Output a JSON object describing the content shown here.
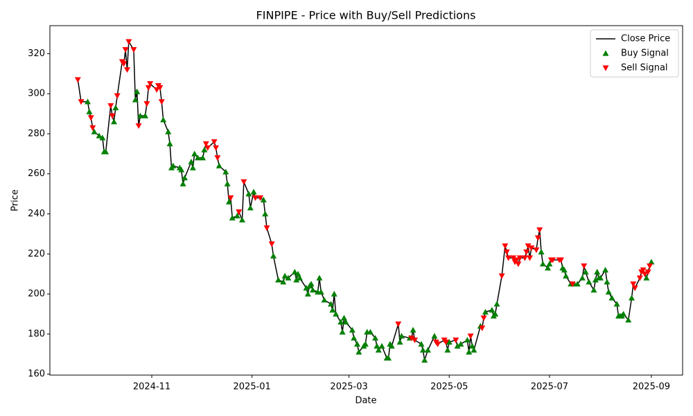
{
  "chart_data": {
    "type": "line",
    "title": "FINPIPE - Price with Buy/Sell Predictions",
    "x_label": "Date",
    "y_label": "Price",
    "legend": "upper right",
    "xlim": [
      "2024-08-31",
      "2025-09-20"
    ],
    "xticks": [
      {
        "value": "2024-11-01",
        "label": "2024-11"
      },
      {
        "value": "2025-01-01",
        "label": "2025-01"
      },
      {
        "value": "2025-03-01",
        "label": "2025-03"
      },
      {
        "value": "2025-05-01",
        "label": "2025-05"
      },
      {
        "value": "2025-07-01",
        "label": "2025-07"
      },
      {
        "value": "2025-09-01",
        "label": "2025-09"
      }
    ],
    "ylim": [
      159.5,
      334
    ],
    "yticks": [
      160,
      180,
      200,
      220,
      240,
      260,
      280,
      300,
      320
    ],
    "x": [
      "2024-09-17",
      "2024-09-19",
      "2024-09-23",
      "2024-09-24",
      "2024-09-25",
      "2024-09-26",
      "2024-09-27",
      "2024-09-30",
      "2024-10-02",
      "2024-10-03",
      "2024-10-04",
      "2024-10-07",
      "2024-10-08",
      "2024-10-09",
      "2024-10-10",
      "2024-10-11",
      "2024-10-14",
      "2024-10-15",
      "2024-10-16",
      "2024-10-17",
      "2024-10-18",
      "2024-10-21",
      "2024-10-22",
      "2024-10-23",
      "2024-10-24",
      "2024-10-25",
      "2024-10-28",
      "2024-10-29",
      "2024-10-30",
      "2024-10-31",
      "2024-11-04",
      "2024-11-05",
      "2024-11-06",
      "2024-11-07",
      "2024-11-08",
      "2024-11-11",
      "2024-11-12",
      "2024-11-13",
      "2024-11-14",
      "2024-11-18",
      "2024-11-19",
      "2024-11-20",
      "2024-11-21",
      "2024-11-25",
      "2024-11-26",
      "2024-11-27",
      "2024-11-29",
      "2024-12-02",
      "2024-12-03",
      "2024-12-04",
      "2024-12-05",
      "2024-12-09",
      "2024-12-10",
      "2024-12-11",
      "2024-12-12",
      "2024-12-16",
      "2024-12-17",
      "2024-12-18",
      "2024-12-19",
      "2024-12-20",
      "2024-12-23",
      "2024-12-24",
      "2024-12-26",
      "2024-12-27",
      "2024-12-30",
      "2024-12-31",
      "2025-01-02",
      "2025-01-03",
      "2025-01-06",
      "2025-01-08",
      "2025-01-09",
      "2025-01-10",
      "2025-01-13",
      "2025-01-14",
      "2025-01-17",
      "2025-01-20",
      "2025-01-21",
      "2025-01-23",
      "2025-01-27",
      "2025-01-28",
      "2025-01-29",
      "2025-01-30",
      "2025-02-03",
      "2025-02-04",
      "2025-02-05",
      "2025-02-06",
      "2025-02-07",
      "2025-02-10",
      "2025-02-11",
      "2025-02-12",
      "2025-02-14",
      "2025-02-18",
      "2025-02-19",
      "2025-02-20",
      "2025-02-21",
      "2025-02-24",
      "2025-02-25",
      "2025-02-26",
      "2025-02-27",
      "2025-03-03",
      "2025-03-04",
      "2025-03-06",
      "2025-03-07",
      "2025-03-10",
      "2025-03-11",
      "2025-03-12",
      "2025-03-14",
      "2025-03-17",
      "2025-03-18",
      "2025-03-19",
      "2025-03-21",
      "2025-03-24",
      "2025-03-25",
      "2025-03-26",
      "2025-03-27",
      "2025-03-31",
      "2025-04-01",
      "2025-04-02",
      "2025-04-07",
      "2025-04-08",
      "2025-04-09",
      "2025-04-10",
      "2025-04-14",
      "2025-04-15",
      "2025-04-16",
      "2025-04-18",
      "2025-04-22",
      "2025-04-23",
      "2025-04-24",
      "2025-04-28",
      "2025-04-29",
      "2025-04-30",
      "2025-05-01",
      "2025-05-05",
      "2025-05-06",
      "2025-05-08",
      "2025-05-12",
      "2025-05-13",
      "2025-05-14",
      "2025-05-15",
      "2025-05-16",
      "2025-05-20",
      "2025-05-21",
      "2025-05-22",
      "2025-05-23",
      "2025-05-27",
      "2025-05-28",
      "2025-05-29",
      "2025-05-30",
      "2025-06-02",
      "2025-06-04",
      "2025-06-05",
      "2025-06-06",
      "2025-06-09",
      "2025-06-10",
      "2025-06-11",
      "2025-06-12",
      "2025-06-13",
      "2025-06-16",
      "2025-06-17",
      "2025-06-18",
      "2025-06-19",
      "2025-06-20",
      "2025-06-23",
      "2025-06-24",
      "2025-06-25",
      "2025-06-26",
      "2025-06-27",
      "2025-06-30",
      "2025-07-01",
      "2025-07-02",
      "2025-07-03",
      "2025-07-07",
      "2025-07-08",
      "2025-07-09",
      "2025-07-10",
      "2025-07-11",
      "2025-07-14",
      "2025-07-15",
      "2025-07-16",
      "2025-07-18",
      "2025-07-21",
      "2025-07-22",
      "2025-07-23",
      "2025-07-25",
      "2025-07-28",
      "2025-07-29",
      "2025-07-30",
      "2025-07-31",
      "2025-08-01",
      "2025-08-04",
      "2025-08-05",
      "2025-08-06",
      "2025-08-08",
      "2025-08-11",
      "2025-08-12",
      "2025-08-13",
      "2025-08-14",
      "2025-08-15",
      "2025-08-18",
      "2025-08-20",
      "2025-08-21",
      "2025-08-22",
      "2025-08-25",
      "2025-08-26",
      "2025-08-27",
      "2025-08-28",
      "2025-08-29",
      "2025-08-30",
      "2025-08-31",
      "2025-09-01"
    ],
    "series": [
      {
        "name": "Close Price",
        "color": "#000000",
        "marker": "line",
        "values": [
          307,
          296,
          296,
          291,
          288,
          283,
          281,
          279,
          278,
          271,
          271,
          294,
          289,
          286,
          293,
          299,
          316,
          315,
          322,
          312,
          326,
          322,
          297,
          301,
          284,
          289,
          289,
          295,
          303,
          305,
          302,
          304,
          303,
          296,
          287,
          281,
          275,
          263,
          264,
          263,
          262,
          255,
          258,
          266,
          263,
          270,
          268,
          268,
          272,
          275,
          273,
          276,
          273,
          268,
          264,
          261,
          255,
          246,
          248,
          238,
          239,
          241,
          237,
          256,
          250,
          243,
          251,
          248,
          248,
          247,
          240,
          233,
          225,
          219,
          207,
          206,
          209,
          208,
          211,
          207,
          210,
          208,
          203,
          200,
          204,
          205,
          202,
          201,
          208,
          201,
          197,
          195,
          192,
          200,
          190,
          186,
          181,
          188,
          186,
          182,
          178,
          175,
          171,
          174,
          175,
          181,
          181,
          178,
          174,
          172,
          174,
          168,
          168,
          175,
          174,
          185,
          176,
          179,
          178,
          178,
          182,
          177,
          175,
          172,
          167,
          172,
          179,
          176,
          175,
          177,
          176,
          172,
          176,
          177,
          174,
          175,
          177,
          171,
          179,
          174,
          172,
          184,
          183,
          188,
          191,
          192,
          189,
          190,
          195,
          209,
          224,
          221,
          218,
          218,
          216,
          217,
          215,
          218,
          218,
          221,
          224,
          218,
          223,
          222,
          228,
          232,
          221,
          215,
          213,
          215,
          217,
          217,
          217,
          217,
          213,
          212,
          209,
          205,
          205,
          205,
          205,
          208,
          214,
          211,
          206,
          202,
          207,
          211,
          208,
          208,
          212,
          206,
          201,
          198,
          195,
          189,
          189,
          189,
          190,
          187,
          198,
          205,
          203,
          208,
          211,
          212,
          210,
          208,
          211,
          214,
          216
        ]
      },
      {
        "name": "Buy Signal",
        "color": "#008000",
        "marker": "up",
        "values": [
          null,
          null,
          296,
          291,
          null,
          null,
          281,
          279,
          278,
          271,
          271,
          null,
          null,
          286,
          293,
          null,
          null,
          null,
          null,
          null,
          null,
          null,
          297,
          301,
          null,
          289,
          289,
          null,
          null,
          null,
          null,
          null,
          null,
          null,
          287,
          281,
          275,
          263,
          264,
          263,
          262,
          255,
          258,
          266,
          263,
          270,
          268,
          268,
          272,
          null,
          null,
          null,
          null,
          null,
          264,
          261,
          255,
          246,
          null,
          238,
          239,
          null,
          237,
          null,
          250,
          243,
          251,
          null,
          null,
          247,
          240,
          null,
          null,
          219,
          207,
          206,
          209,
          208,
          211,
          207,
          210,
          208,
          203,
          200,
          204,
          205,
          202,
          201,
          208,
          201,
          197,
          195,
          192,
          200,
          190,
          186,
          181,
          188,
          186,
          182,
          178,
          175,
          171,
          174,
          175,
          181,
          181,
          178,
          174,
          172,
          174,
          168,
          168,
          175,
          174,
          null,
          176,
          179,
          178,
          null,
          182,
          null,
          175,
          172,
          167,
          172,
          179,
          null,
          null,
          null,
          null,
          172,
          176,
          null,
          174,
          175,
          177,
          171,
          null,
          174,
          172,
          184,
          null,
          null,
          191,
          192,
          189,
          190,
          195,
          null,
          null,
          null,
          null,
          null,
          null,
          null,
          null,
          null,
          null,
          null,
          null,
          null,
          null,
          null,
          null,
          null,
          221,
          215,
          213,
          215,
          null,
          null,
          null,
          null,
          213,
          212,
          209,
          205,
          null,
          205,
          205,
          208,
          null,
          211,
          206,
          202,
          207,
          211,
          208,
          208,
          212,
          206,
          201,
          198,
          195,
          189,
          189,
          189,
          190,
          187,
          198,
          null,
          null,
          null,
          null,
          null,
          null,
          208,
          null,
          null,
          216
        ]
      },
      {
        "name": "Sell Signal",
        "color": "#ff0000",
        "marker": "down",
        "values": [
          307,
          296,
          null,
          null,
          288,
          283,
          null,
          null,
          null,
          null,
          null,
          294,
          289,
          null,
          null,
          299,
          316,
          315,
          322,
          312,
          326,
          322,
          null,
          null,
          284,
          null,
          null,
          295,
          303,
          305,
          302,
          304,
          303,
          296,
          null,
          null,
          null,
          null,
          null,
          null,
          null,
          null,
          null,
          null,
          null,
          null,
          null,
          null,
          null,
          275,
          273,
          276,
          273,
          268,
          null,
          null,
          null,
          null,
          248,
          null,
          null,
          241,
          null,
          256,
          null,
          null,
          null,
          248,
          248,
          null,
          null,
          233,
          225,
          null,
          null,
          null,
          null,
          null,
          null,
          null,
          null,
          null,
          null,
          null,
          null,
          null,
          null,
          null,
          null,
          null,
          null,
          null,
          null,
          null,
          null,
          null,
          null,
          null,
          null,
          null,
          null,
          null,
          null,
          null,
          null,
          null,
          null,
          null,
          null,
          null,
          null,
          null,
          null,
          null,
          null,
          185,
          null,
          null,
          null,
          178,
          null,
          177,
          null,
          null,
          null,
          null,
          null,
          176,
          175,
          177,
          176,
          null,
          null,
          177,
          null,
          null,
          null,
          null,
          179,
          null,
          null,
          null,
          183,
          188,
          null,
          null,
          null,
          null,
          null,
          209,
          224,
          221,
          218,
          218,
          216,
          217,
          215,
          218,
          218,
          221,
          224,
          218,
          223,
          222,
          228,
          232,
          null,
          null,
          null,
          null,
          217,
          217,
          217,
          217,
          null,
          null,
          null,
          null,
          205,
          null,
          null,
          null,
          214,
          null,
          null,
          null,
          null,
          null,
          null,
          null,
          null,
          null,
          null,
          null,
          null,
          null,
          null,
          null,
          null,
          null,
          null,
          205,
          203,
          208,
          211,
          212,
          210,
          null,
          211,
          214,
          null
        ]
      }
    ]
  }
}
